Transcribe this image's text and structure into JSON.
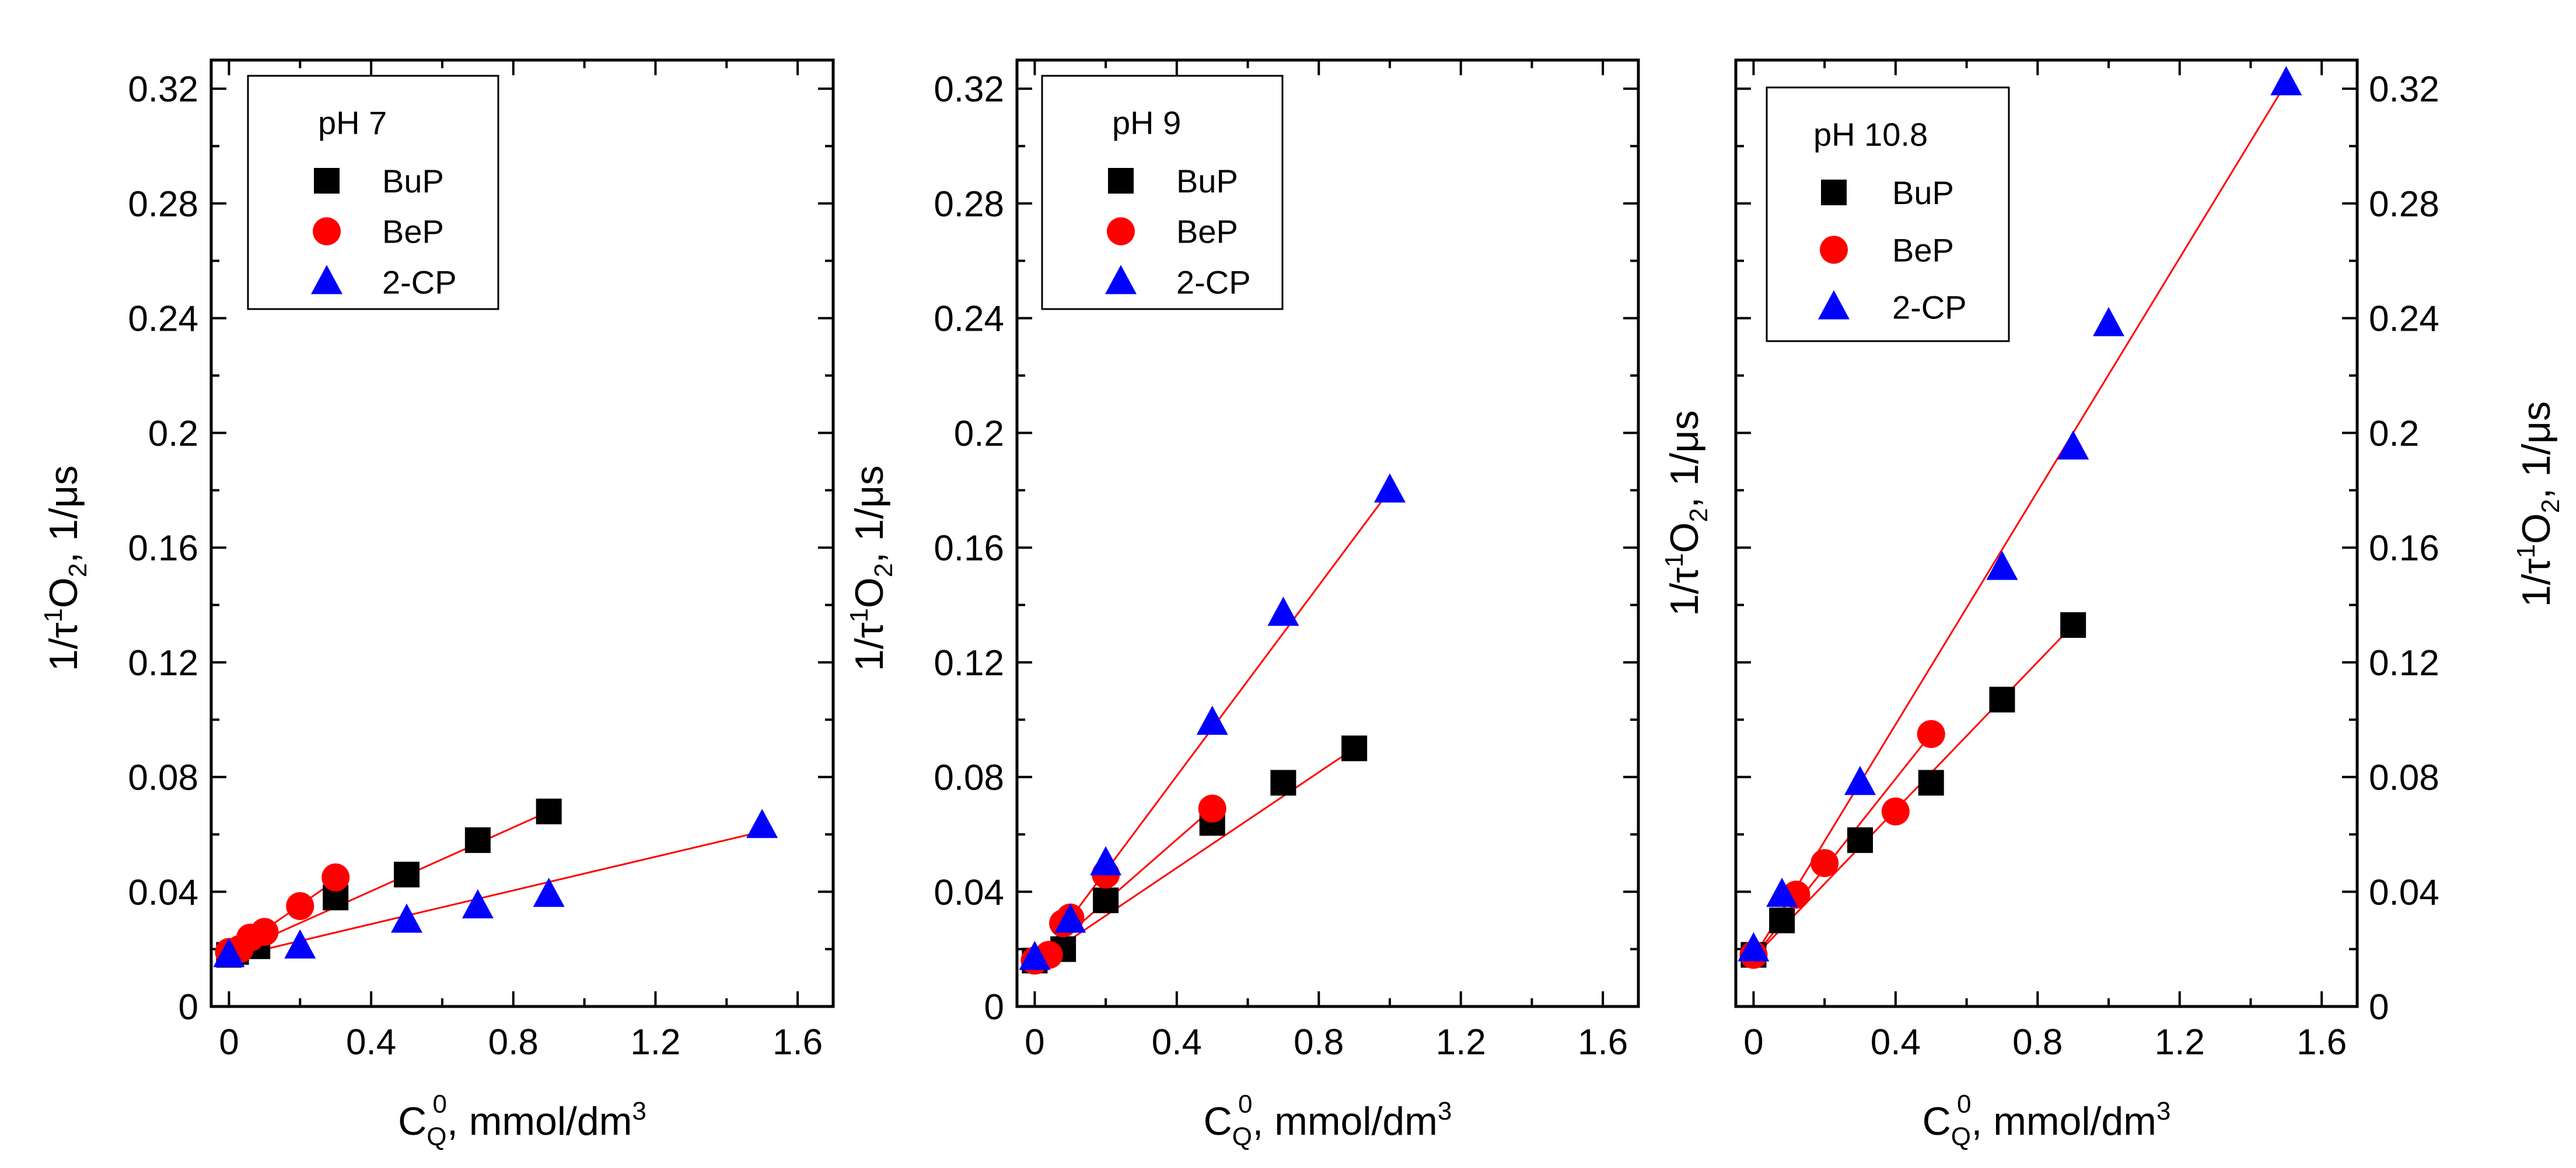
{
  "figure": {
    "series_colors": {
      "BuP": "#000000",
      "BeP": "#ff0000",
      "2-CP": "#0000ff"
    },
    "fit_line_color": "#ff0000"
  },
  "chart_data": [
    {
      "type": "scatter",
      "panel": "left",
      "legend_title": "pH 7",
      "xlabel": "C_Q^0, mmol/dm^3",
      "ylabel": "1/τ^1O_2, 1/μs",
      "xlim": [
        -0.05,
        1.7
      ],
      "ylim": [
        0,
        0.33
      ],
      "xticks": [
        "0",
        "0.4",
        "0.8",
        "1.2",
        "1.6"
      ],
      "yticks": [
        "0",
        "0.04",
        "0.08",
        "0.12",
        "0.16",
        "0.2",
        "0.24",
        "0.28",
        "0.32"
      ],
      "yaxis_side": "left",
      "series": [
        {
          "name": "BuP",
          "marker": "square",
          "x": [
            0,
            0.02,
            0.08,
            0.3,
            0.5,
            0.7,
            0.9
          ],
          "y": [
            0.018,
            0.019,
            0.021,
            0.038,
            0.046,
            0.058,
            0.068
          ],
          "fit": [
            [
              0,
              0.018
            ],
            [
              0.9,
              0.068
            ]
          ]
        },
        {
          "name": "BeP",
          "marker": "circle",
          "x": [
            0,
            0.03,
            0.06,
            0.1,
            0.2,
            0.3
          ],
          "y": [
            0.019,
            0.02,
            0.024,
            0.026,
            0.035,
            0.045
          ],
          "fit": [
            [
              0,
              0.018
            ],
            [
              0.3,
              0.044
            ]
          ]
        },
        {
          "name": "2-CP",
          "marker": "triangle",
          "x": [
            0,
            0.2,
            0.5,
            0.7,
            0.9,
            1.5
          ],
          "y": [
            0.018,
            0.021,
            0.03,
            0.035,
            0.039,
            0.063
          ],
          "fit": [
            [
              0,
              0.017
            ],
            [
              1.5,
              0.061
            ]
          ]
        }
      ]
    },
    {
      "type": "scatter",
      "panel": "middle",
      "legend_title": "pH 9",
      "xlabel": "C_Q^0, mmol/dm^3",
      "ylabel": "1/τ^1O_2, 1/μs",
      "xlim": [
        -0.05,
        1.7
      ],
      "ylim": [
        0,
        0.33
      ],
      "xticks": [
        "0",
        "0.4",
        "0.8",
        "1.2",
        "1.6"
      ],
      "yticks": [
        "0",
        "0.04",
        "0.08",
        "0.12",
        "0.16",
        "0.2",
        "0.24",
        "0.28",
        "0.32"
      ],
      "yaxis_side": "left",
      "series": [
        {
          "name": "BuP",
          "marker": "square",
          "x": [
            0,
            0.08,
            0.2,
            0.5,
            0.7,
            0.9
          ],
          "y": [
            0.016,
            0.02,
            0.037,
            0.064,
            0.078,
            0.09
          ],
          "fit": [
            [
              0,
              0.015
            ],
            [
              0.9,
              0.09
            ]
          ]
        },
        {
          "name": "BeP",
          "marker": "circle",
          "x": [
            0,
            0.04,
            0.08,
            0.1,
            0.2,
            0.5
          ],
          "y": [
            0.016,
            0.018,
            0.029,
            0.031,
            0.046,
            0.069
          ],
          "fit": [
            [
              0,
              0.015
            ],
            [
              0.5,
              0.069
            ]
          ]
        },
        {
          "name": "2-CP",
          "marker": "triangle",
          "x": [
            0,
            0.1,
            0.2,
            0.5,
            0.7,
            1.0
          ],
          "y": [
            0.017,
            0.03,
            0.05,
            0.099,
            0.137,
            0.18
          ],
          "fit": [
            [
              0,
              0.014
            ],
            [
              1.0,
              0.18
            ]
          ]
        }
      ]
    },
    {
      "type": "scatter",
      "panel": "right",
      "legend_title": "pH 10.8",
      "xlabel": "C_Q^0, mmol/dm^3",
      "ylabel": "1/τ^1O_2, 1/μs",
      "xlim": [
        -0.05,
        1.7
      ],
      "ylim": [
        0,
        0.33
      ],
      "xticks": [
        "0",
        "0.4",
        "0.8",
        "1.2",
        "1.6"
      ],
      "yticks": [
        "0",
        "0.04",
        "0.08",
        "0.12",
        "0.16",
        "0.2",
        "0.24",
        "0.28",
        "0.32"
      ],
      "yaxis_side": "right",
      "series": [
        {
          "name": "BuP",
          "marker": "square",
          "x": [
            0,
            0.08,
            0.3,
            0.5,
            0.7,
            0.9
          ],
          "y": [
            0.018,
            0.03,
            0.058,
            0.078,
            0.107,
            0.133
          ],
          "fit": [
            [
              0,
              0.017
            ],
            [
              0.9,
              0.133
            ]
          ]
        },
        {
          "name": "BeP",
          "marker": "circle",
          "x": [
            0,
            0.12,
            0.2,
            0.4,
            0.5
          ],
          "y": [
            0.018,
            0.039,
            0.05,
            0.068,
            0.095
          ],
          "fit": [
            [
              0,
              0.017
            ],
            [
              0.5,
              0.095
            ]
          ]
        },
        {
          "name": "2-CP",
          "marker": "triangle",
          "x": [
            0,
            0.08,
            0.3,
            0.7,
            0.9,
            1.0,
            1.5
          ],
          "y": [
            0.02,
            0.039,
            0.078,
            0.153,
            0.195,
            0.238,
            0.322
          ],
          "fit": [
            [
              0,
              0.017
            ],
            [
              1.5,
              0.322
            ]
          ]
        }
      ]
    }
  ]
}
